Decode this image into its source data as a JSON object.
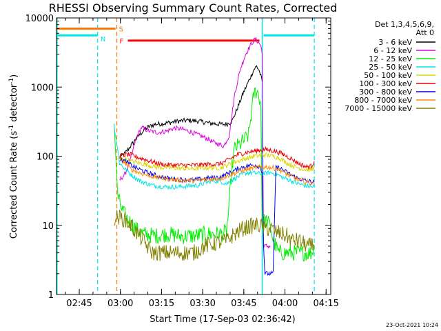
{
  "chart_data": {
    "type": "line",
    "title": "RHESSI Observing Summary Count Rates, Corrected",
    "xlabel": "Start Time (17-Sep-03 02:36:42)",
    "ylabel_main": "Corrected Count Rate (s",
    "ylabel_sup1": "-1",
    "ylabel_mid": " detector",
    "ylabel_sup2": "-1",
    "ylabel_end": ")",
    "yscale": "log",
    "ylim": [
      1,
      10000
    ],
    "xlim_minutes": [
      0,
      100
    ],
    "x_unit": "minutes since 02:36:42",
    "y_ticks": [
      {
        "value": 1,
        "label": "1"
      },
      {
        "value": 10,
        "label": "10"
      },
      {
        "value": 100,
        "label": "100"
      },
      {
        "value": 1000,
        "label": "1000"
      },
      {
        "value": 10000,
        "label": "10000"
      }
    ],
    "x_ticks": [
      {
        "value": 8.3,
        "label": "02:45"
      },
      {
        "value": 23.3,
        "label": "03:00"
      },
      {
        "value": 38.3,
        "label": "03:15"
      },
      {
        "value": 53.3,
        "label": "03:30"
      },
      {
        "value": 68.3,
        "label": "03:45"
      },
      {
        "value": 83.3,
        "label": "04:00"
      },
      {
        "value": 98.3,
        "label": "04:15"
      }
    ],
    "legend": {
      "header1": "Det 1,3,4,5,6,9,",
      "header2": "Att 0",
      "placement": "top-right outside",
      "entries": [
        {
          "label": "3 - 6 keV",
          "color": "#000000"
        },
        {
          "label": "6 - 12 keV",
          "color": "#dd00dd"
        },
        {
          "label": "12 - 25 keV",
          "color": "#00ee00"
        },
        {
          "label": "25 - 50 keV",
          "color": "#00e5e5"
        },
        {
          "label": "50 - 100 keV",
          "color": "#d8d800"
        },
        {
          "label": "100 - 300 keV",
          "color": "#ee0000"
        },
        {
          "label": "300 - 800 keV",
          "color": "#0000ee"
        },
        {
          "label": "800 - 7000 keV",
          "color": "#ff8800"
        },
        {
          "label": "7000 - 15000 keV",
          "color": "#808000"
        }
      ]
    },
    "series": [
      {
        "name": "3 - 6 keV",
        "color": "#000000",
        "points": [
          [
            23,
            95
          ],
          [
            25,
            110
          ],
          [
            27,
            140
          ],
          [
            30,
            200
          ],
          [
            33,
            260
          ],
          [
            36,
            290
          ],
          [
            40,
            300
          ],
          [
            44,
            320
          ],
          [
            48,
            330
          ],
          [
            52,
            320
          ],
          [
            56,
            300
          ],
          [
            60,
            290
          ],
          [
            62,
            290
          ],
          [
            64,
            320
          ],
          [
            66,
            500
          ],
          [
            68,
            800
          ],
          [
            70,
            1200
          ],
          [
            72,
            1800
          ],
          [
            73,
            2000
          ],
          [
            74,
            1700
          ],
          [
            75,
            1200
          ]
        ]
      },
      {
        "name": "6 - 12 keV",
        "color": "#dd00dd",
        "points": [
          [
            23,
            45
          ],
          [
            25,
            55
          ],
          [
            27,
            90
          ],
          [
            29,
            180
          ],
          [
            31,
            260
          ],
          [
            34,
            230
          ],
          [
            37,
            220
          ],
          [
            40,
            230
          ],
          [
            43,
            255
          ],
          [
            46,
            245
          ],
          [
            49,
            225
          ],
          [
            52,
            200
          ],
          [
            55,
            180
          ],
          [
            57,
            160
          ],
          [
            59,
            150
          ],
          [
            61,
            140
          ],
          [
            63,
            200
          ],
          [
            65,
            800
          ],
          [
            67,
            1800
          ],
          [
            69,
            3000
          ],
          [
            71,
            4200
          ],
          [
            72.5,
            5000
          ],
          [
            73.5,
            4500
          ],
          [
            74.5,
            4000
          ],
          [
            75,
            3000
          ],
          [
            75.5,
            5
          ],
          [
            78,
            5
          ]
        ]
      },
      {
        "name": "12 - 25 keV",
        "color": "#00ee00",
        "points": [
          [
            21,
            300
          ],
          [
            22,
            40
          ],
          [
            22.5,
            25
          ],
          [
            24,
            16
          ],
          [
            26,
            12
          ],
          [
            28,
            10
          ],
          [
            30,
            8
          ],
          [
            32,
            7.5
          ],
          [
            36,
            7
          ],
          [
            40,
            7.5
          ],
          [
            45,
            7
          ],
          [
            50,
            7
          ],
          [
            55,
            7.5
          ],
          [
            60,
            7.5
          ],
          [
            62,
            8
          ],
          [
            63,
            20
          ],
          [
            64,
            70
          ],
          [
            65,
            130
          ],
          [
            67,
            150
          ],
          [
            69,
            180
          ],
          [
            70,
            200
          ],
          [
            71,
            400
          ],
          [
            72,
            800
          ],
          [
            73,
            900
          ],
          [
            74,
            700
          ],
          [
            74.5,
            550
          ],
          [
            75,
            10
          ],
          [
            76,
            12
          ],
          [
            78,
            10
          ],
          [
            79,
            6
          ],
          [
            81,
            4
          ],
          [
            85,
            4
          ],
          [
            90,
            4
          ],
          [
            93,
            4
          ],
          [
            94,
            5
          ]
        ]
      },
      {
        "name": "25 - 50 keV",
        "color": "#00e5e5",
        "points": [
          [
            21,
            280
          ],
          [
            23,
            80
          ],
          [
            25,
            65
          ],
          [
            27,
            55
          ],
          [
            29,
            48
          ],
          [
            31,
            43
          ],
          [
            33,
            40
          ],
          [
            35,
            38
          ],
          [
            37,
            37
          ],
          [
            40,
            36
          ],
          [
            44,
            36
          ],
          [
            48,
            37
          ],
          [
            52,
            38
          ],
          [
            55,
            42
          ],
          [
            57,
            44
          ],
          [
            60,
            43
          ],
          [
            62,
            40
          ],
          [
            64,
            45
          ],
          [
            66,
            50
          ],
          [
            68,
            55
          ],
          [
            70,
            58
          ],
          [
            72,
            57
          ],
          [
            74,
            56
          ],
          [
            76,
            56
          ],
          [
            78,
            58
          ],
          [
            80,
            56
          ],
          [
            82,
            50
          ],
          [
            85,
            45
          ],
          [
            88,
            40
          ],
          [
            91,
            37
          ],
          [
            94,
            36
          ]
        ]
      },
      {
        "name": "50 - 100 keV",
        "color": "#d8d800",
        "points": [
          [
            23,
            90
          ],
          [
            25,
            90
          ],
          [
            27,
            85
          ],
          [
            30,
            80
          ],
          [
            33,
            75
          ],
          [
            36,
            70
          ],
          [
            40,
            68
          ],
          [
            45,
            67
          ],
          [
            50,
            66
          ],
          [
            55,
            68
          ],
          [
            60,
            68
          ],
          [
            64,
            80
          ],
          [
            68,
            90
          ],
          [
            72,
            100
          ],
          [
            76,
            105
          ],
          [
            79,
            100
          ],
          [
            81,
            95
          ],
          [
            84,
            80
          ],
          [
            87,
            70
          ],
          [
            90,
            65
          ],
          [
            93,
            63
          ],
          [
            94,
            70
          ]
        ]
      },
      {
        "name": "100 - 300 keV",
        "color": "#ee0000",
        "points": [
          [
            23,
            100
          ],
          [
            25,
            105
          ],
          [
            27,
            105
          ],
          [
            30,
            95
          ],
          [
            33,
            88
          ],
          [
            36,
            80
          ],
          [
            40,
            75
          ],
          [
            45,
            74
          ],
          [
            50,
            74
          ],
          [
            55,
            76
          ],
          [
            60,
            78
          ],
          [
            63,
            90
          ],
          [
            66,
            105
          ],
          [
            70,
            115
          ],
          [
            73,
            120
          ],
          [
            76,
            125
          ],
          [
            79,
            120
          ],
          [
            82,
            110
          ],
          [
            85,
            95
          ],
          [
            88,
            80
          ],
          [
            91,
            70
          ],
          [
            93,
            72
          ],
          [
            94,
            85
          ]
        ]
      },
      {
        "name": "300 - 800 keV",
        "color": "#0000ee",
        "points": [
          [
            23,
            90
          ],
          [
            25,
            85
          ],
          [
            27,
            75
          ],
          [
            30,
            65
          ],
          [
            33,
            58
          ],
          [
            36,
            53
          ],
          [
            40,
            48
          ],
          [
            45,
            46
          ],
          [
            50,
            45
          ],
          [
            55,
            48
          ],
          [
            60,
            50
          ],
          [
            64,
            60
          ],
          [
            68,
            70
          ],
          [
            72,
            75
          ],
          [
            74,
            72
          ],
          [
            75,
            60
          ],
          [
            75.5,
            5
          ],
          [
            76,
            2
          ],
          [
            78,
            2
          ],
          [
            79,
            2
          ],
          [
            80,
            70
          ],
          [
            82,
            65
          ],
          [
            85,
            55
          ],
          [
            88,
            48
          ],
          [
            91,
            44
          ],
          [
            94,
            42
          ]
        ]
      },
      {
        "name": "800 - 7000 keV",
        "color": "#ff8800",
        "points": [
          [
            23,
            95
          ],
          [
            25,
            80
          ],
          [
            27,
            65
          ],
          [
            30,
            58
          ],
          [
            33,
            53
          ],
          [
            36,
            50
          ],
          [
            40,
            47
          ],
          [
            45,
            45
          ],
          [
            50,
            44
          ],
          [
            55,
            46
          ],
          [
            60,
            48
          ],
          [
            64,
            55
          ],
          [
            68,
            62
          ],
          [
            72,
            68
          ],
          [
            76,
            70
          ],
          [
            79,
            68
          ],
          [
            82,
            62
          ],
          [
            85,
            52
          ],
          [
            88,
            46
          ],
          [
            91,
            42
          ],
          [
            94,
            40
          ]
        ]
      },
      {
        "name": "7000 - 15000 keV",
        "color": "#808000",
        "points": [
          [
            21,
            13
          ],
          [
            23,
            13
          ],
          [
            25,
            12
          ],
          [
            27,
            10
          ],
          [
            29,
            8
          ],
          [
            31,
            6.5
          ],
          [
            33,
            5
          ],
          [
            35,
            4
          ],
          [
            38,
            4
          ],
          [
            42,
            4
          ],
          [
            46,
            4
          ],
          [
            50,
            4
          ],
          [
            54,
            5
          ],
          [
            58,
            5.5
          ],
          [
            62,
            6
          ],
          [
            64,
            7
          ],
          [
            66,
            8
          ],
          [
            68,
            9
          ],
          [
            70,
            9.5
          ],
          [
            72,
            10
          ],
          [
            74,
            10
          ],
          [
            76,
            9
          ],
          [
            78,
            9
          ],
          [
            80,
            8
          ],
          [
            82,
            7.5
          ],
          [
            84,
            7
          ],
          [
            86,
            6
          ],
          [
            88,
            6
          ],
          [
            90,
            5.5
          ],
          [
            92,
            5
          ],
          [
            94,
            5
          ]
        ]
      }
    ],
    "annotations": {
      "saa_bar": {
        "label": "S",
        "color": "#ff7700",
        "x_start": 0,
        "x_end": 21.5,
        "y": 7000
      },
      "night_bar": {
        "label": "N",
        "color": "#00e5e5",
        "x_start": 0,
        "x_end": 15,
        "y": 5600
      },
      "flare_bar": {
        "label": "F",
        "color": "#ff0000",
        "x_start": 26,
        "x_end": 74,
        "y": 4700
      },
      "cyan_bar_right": {
        "color": "#00e5e5",
        "x_start": 75.5,
        "x_end": 94,
        "y": 5600
      },
      "cyan_night_lines": [
        15,
        94
      ],
      "cyan_solid_lines": [
        0.2,
        75
      ],
      "orange_saa_line": 22
    },
    "footer": "23-Oct-2021 10:24"
  }
}
